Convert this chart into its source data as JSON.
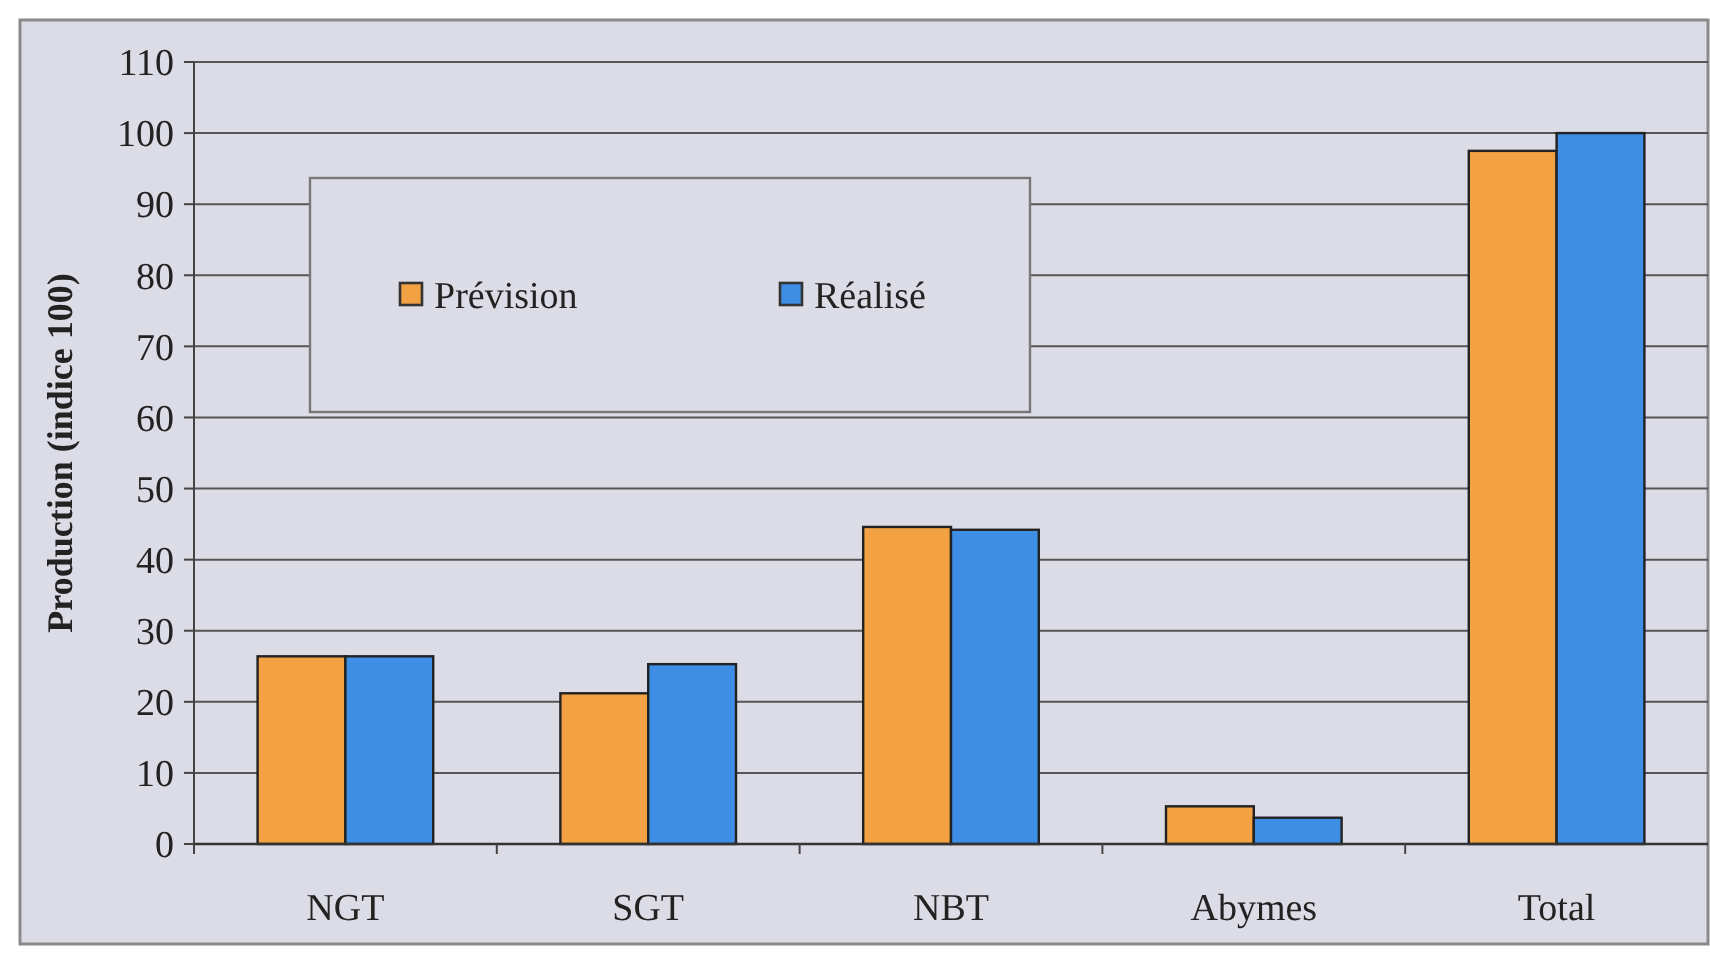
{
  "chart_data": {
    "type": "bar",
    "ylabel": "Production (indice 100)",
    "categories": [
      "NGT",
      "SGT",
      "NBT",
      "Abymes",
      "Total"
    ],
    "series": [
      {
        "name": "Prévision",
        "color": "#f2a242",
        "values": [
          26.4,
          21.2,
          44.6,
          5.3,
          97.5
        ]
      },
      {
        "name": "Réalisé",
        "color": "#3d8ee4",
        "values": [
          26.4,
          25.3,
          44.2,
          3.7,
          100.0
        ]
      }
    ],
    "ylim": [
      0,
      110
    ],
    "yticks": [
      0,
      10,
      20,
      30,
      40,
      50,
      60,
      70,
      80,
      90,
      100,
      110
    ],
    "grid": "y",
    "legend": "top left"
  }
}
